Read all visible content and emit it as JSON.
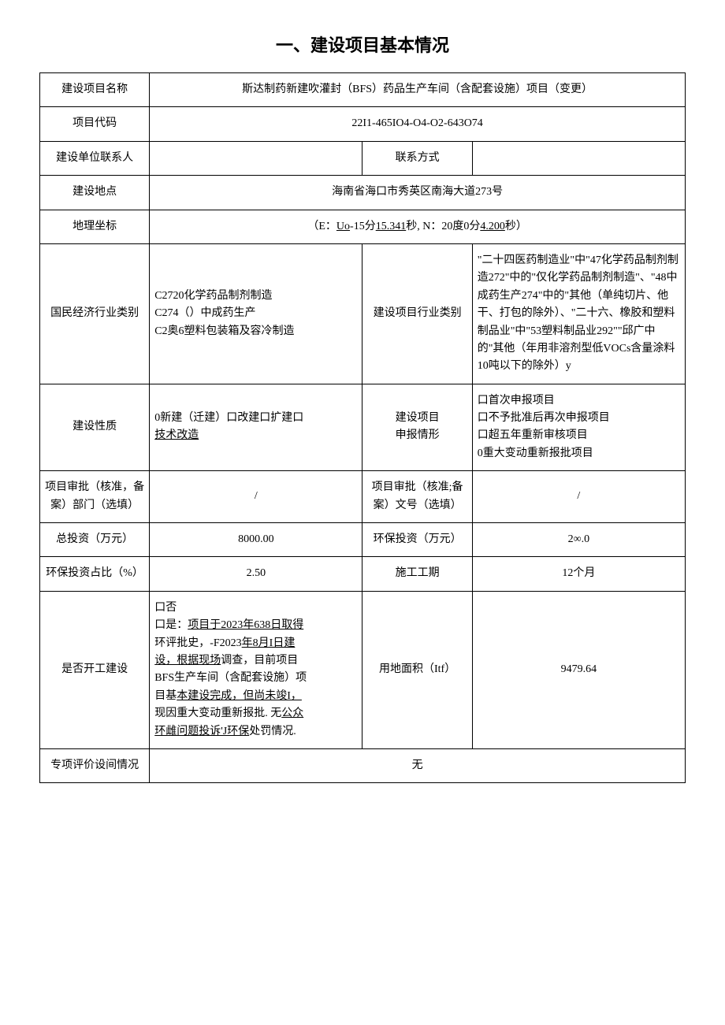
{
  "page_title": "一、建设项目基本情况",
  "rows": {
    "project_name": {
      "label": "建设项目名称",
      "value": "斯达制药新建吹灌封（BFS）药品生产车间（含配套设施）项目（变更）"
    },
    "project_code": {
      "label": "项目代码",
      "value": "22I1-465IO4-O4-O2-643O74"
    },
    "contact_person": {
      "label": "建设单位联系人",
      "value": ""
    },
    "contact_method": {
      "label": "联系方式",
      "value": ""
    },
    "location": {
      "label": "建设地点",
      "value": "海南省海口市秀英区南海大道273号"
    },
    "coords": {
      "label": "地理坐标",
      "prefix": "（E：",
      "e_u": "Uo",
      "e_mid": "-15分",
      "e_sec": "15.341",
      "e_suffix": "秒, N：20度0分",
      "n_sec": "4.200",
      "suffix": "秒）"
    },
    "industry_class": {
      "label": "国民经济行业类别",
      "line1": "C2720化学药品制剂制造",
      "line2": "C274（）中成药生产",
      "line3": "C2奥6塑料包装箱及容冷制造"
    },
    "project_industry": {
      "label": "建设项目行业类别",
      "value": "\"二十四医药制造业\"中\"47化学药品制剂制造272\"中的\"仅化学药品制剂制造\"、\"48中成药生产274\"中的\"其他（单纯切片、他干、打包的除外）、\"二十六、橡胶和塑料制品业\"中\"53塑料制品业292\"\"邱广中的\"其他（年用非溶剂型低VOCs含量涂料10吨以下的除外）y"
    },
    "nature": {
      "label": "建设性质",
      "line1": "0新建（迁建）口改建口扩建口",
      "line2_u": "技术改造"
    },
    "declare": {
      "label1": "建设项目",
      "label2": "申报情形",
      "line1": "口首次申报项目",
      "line2": "口不予批准后再次申报项目",
      "line3": "口超五年重新审核项目",
      "line4": "0重大变动重新报批项目"
    },
    "approval_dept": {
      "label": "项目审批（核准，备案）部门（选填）",
      "value": "/"
    },
    "approval_no": {
      "label": "项目审批（核准;备案）文号（选填）",
      "value": "/"
    },
    "total_invest": {
      "label": "总投资（万元）",
      "value": "8000.00"
    },
    "env_invest": {
      "label": "环保投资（万元）",
      "value": "2∞.0"
    },
    "env_ratio": {
      "label": "环保投资占比（%）",
      "value": "2.50"
    },
    "duration": {
      "label": "施工工期",
      "value": "12个月"
    },
    "started": {
      "label": "是否开工建设",
      "line1": "口否",
      "line2a": "口是：",
      "line2b": "项目于2023年638日取得",
      "line3a": "环评批史，-F2023",
      "line3b": "年8月I日建",
      "line4a": "设，根据现场",
      "line4b": "调查，目前项目",
      "line5": "BFS生产车间（含配套设施）项",
      "line6a": "目基",
      "line6b": "本建设完成，但尚未竣I，",
      "line7a": "现因重大变动重新报批. 无",
      "line7b": "公众",
      "line8a": "环雌问题投诉'J环保",
      "line8b": "处罚情况."
    },
    "land_area": {
      "label": "用地面积（Itf）",
      "value": "9479.64"
    },
    "special_eval": {
      "label": "专项评价设间情况",
      "value": "无"
    }
  }
}
